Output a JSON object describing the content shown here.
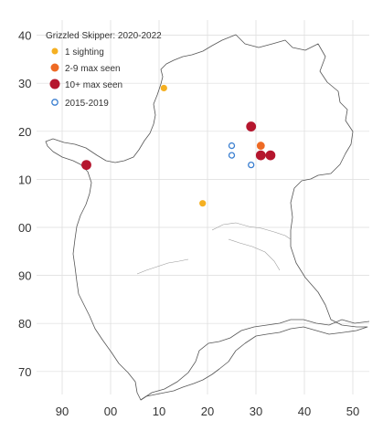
{
  "map": {
    "legend": {
      "title": "Grizzled Skipper:  2020-2022",
      "items": [
        {
          "label": "1 sighting",
          "style": "filled-small",
          "color": "#f5b022"
        },
        {
          "label": "2-9 max seen",
          "style": "filled-medium",
          "color": "#ee6a24"
        },
        {
          "label": "10+ max seen",
          "style": "filled-large",
          "color": "#b5162e"
        },
        {
          "label": "2015-2019",
          "style": "open-ring",
          "color": "#3b7fd0"
        }
      ]
    },
    "x_ticks": [
      "90",
      "00",
      "10",
      "20",
      "30",
      "40",
      "50"
    ],
    "y_ticks": [
      "40",
      "30",
      "20",
      "10",
      "00",
      "90",
      "80",
      "70"
    ],
    "grid": true,
    "colors": {
      "one_sighting": "#f5b022",
      "two_to_nine": "#ee6a24",
      "ten_plus": "#b5162e",
      "earlier_records": "#3b7fd0",
      "boundary": "#555555",
      "grid": "#dcdcdc"
    },
    "records": [
      {
        "category": "1 sighting",
        "x": 11,
        "y": 29
      },
      {
        "category": "1 sighting",
        "x": 19,
        "y": 5
      },
      {
        "category": "2-9 max seen",
        "x": 31,
        "y": 17
      },
      {
        "category": "10+ max seen",
        "x": -5,
        "y": 13
      },
      {
        "category": "10+ max seen",
        "x": 29,
        "y": 21
      },
      {
        "category": "10+ max seen",
        "x": 31,
        "y": 15
      },
      {
        "category": "10+ max seen",
        "x": 33,
        "y": 15
      },
      {
        "category": "2015-2019",
        "x": 25,
        "y": 17
      },
      {
        "category": "2015-2019",
        "x": 25,
        "y": 15
      },
      {
        "category": "2015-2019",
        "x": 29,
        "y": 13
      }
    ]
  }
}
